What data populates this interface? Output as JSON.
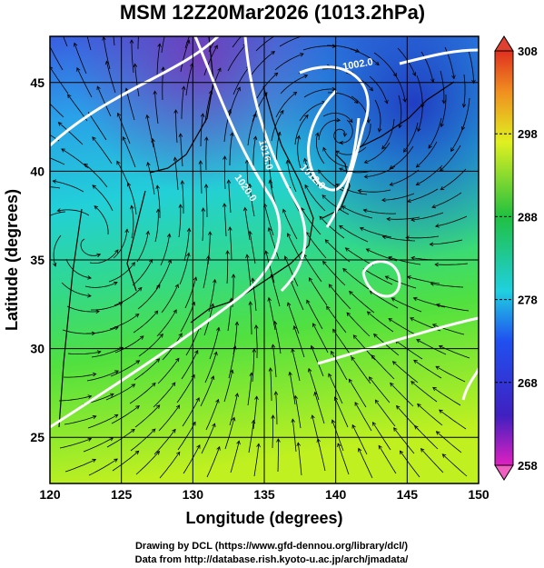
{
  "title": "MSM 12Z20Mar2026 (1013.2hPa)",
  "x_axis": {
    "label": "Longitude (degrees)",
    "lim": [
      120,
      150
    ],
    "ticks": [
      120,
      125,
      130,
      135,
      140,
      145,
      150
    ]
  },
  "y_axis": {
    "label": "Latitude  (degrees)",
    "lim": [
      22.4,
      47.6
    ],
    "ticks": [
      25,
      30,
      35,
      40,
      45
    ]
  },
  "colorbar": {
    "lim": [
      258,
      308
    ],
    "ticks": [
      258,
      268,
      278,
      288,
      298,
      308
    ]
  },
  "contour_labels": [
    "1002.0",
    "1016.0",
    "1020.0",
    "1012.0"
  ],
  "credits": [
    "Drawing by DCL (https://www.gfd-dennou.org/library/dcl/)",
    "Data from http://database.rish.kyoto-u.ac.jp/arch/jmadata/"
  ]
}
